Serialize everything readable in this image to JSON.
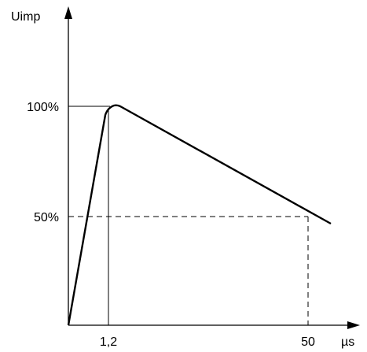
{
  "chart_data": {
    "type": "line",
    "title": "",
    "ylabel": "Uimp",
    "xlabel": "µs",
    "x_ticks": [
      "1,2",
      "50"
    ],
    "y_ticks": [
      "100%",
      "50%"
    ],
    "series": [
      {
        "points": [
          [
            0,
            0
          ],
          [
            1.2,
            100
          ],
          [
            55,
            45
          ]
        ]
      }
    ],
    "reference_lines": [
      {
        "from": [
          0,
          100
        ],
        "to": [
          1.2,
          100
        ],
        "style": "solid"
      },
      {
        "from": [
          1.2,
          0
        ],
        "to": [
          1.2,
          100
        ],
        "style": "solid"
      },
      {
        "from": [
          0,
          50
        ],
        "to": [
          50,
          50
        ],
        "style": "dashed"
      },
      {
        "from": [
          50,
          0
        ],
        "to": [
          50,
          50
        ],
        "style": "dashed"
      }
    ],
    "grid": false
  }
}
